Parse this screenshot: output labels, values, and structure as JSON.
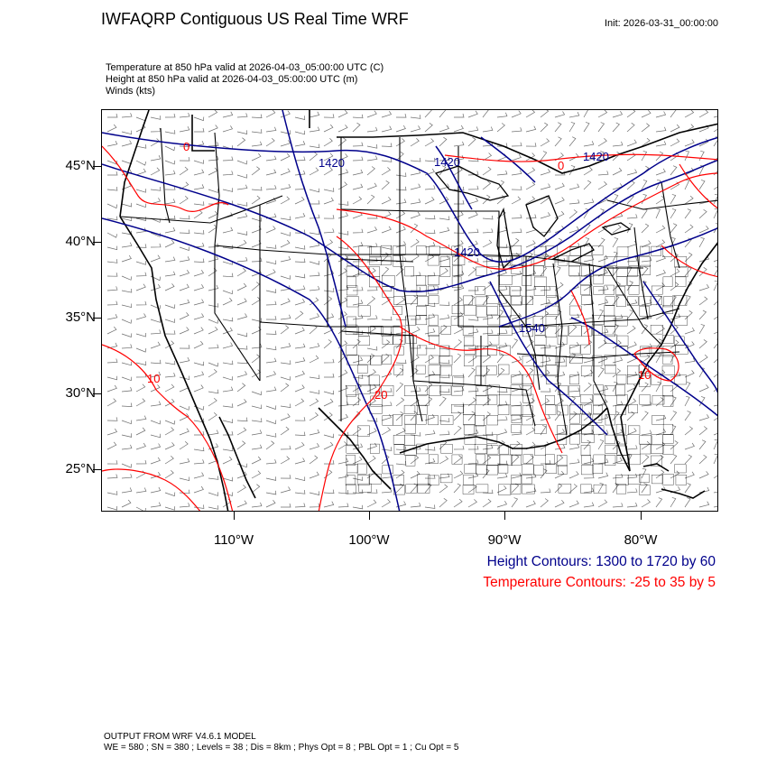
{
  "header": {
    "title": "IWFAQRP Contiguous US Real Time WRF",
    "init": "Init: 2026-03-31_00:00:00"
  },
  "subtitles": [
    "Temperature at 850 hPa valid at 2026-04-03_05:00:00 UTC   (C)",
    "Height at 850 hPa valid at 2026-04-03_05:00:00 UTC   (m)",
    "Winds   (kts)"
  ],
  "axes": {
    "lat_labels": [
      "45°N",
      "40°N",
      "35°N",
      "30°N",
      "25°N"
    ],
    "lon_labels": [
      "110°W",
      "100°W",
      "90°W",
      "80°W"
    ]
  },
  "contour_labels": {
    "height": [
      "1420",
      "1420",
      "1420",
      "1540",
      "1420"
    ],
    "temperature": [
      "0",
      "0",
      "10",
      "20",
      "10"
    ]
  },
  "legend": {
    "height": "Height Contours: 1300 to 1720 by 60",
    "temperature": "Temperature Contours: -25 to 35 by 5"
  },
  "colors": {
    "height_contour": "#00008b",
    "temperature_contour": "#ff0000",
    "boundaries": "#000000"
  },
  "footer": {
    "line1": "OUTPUT FROM WRF V4.6.1 MODEL",
    "line2": "WE = 580 ; SN = 380 ; Levels = 38 ; Dis = 8km ; Phys Opt = 8 ; PBL Opt = 1 ; Cu Opt = 5"
  }
}
